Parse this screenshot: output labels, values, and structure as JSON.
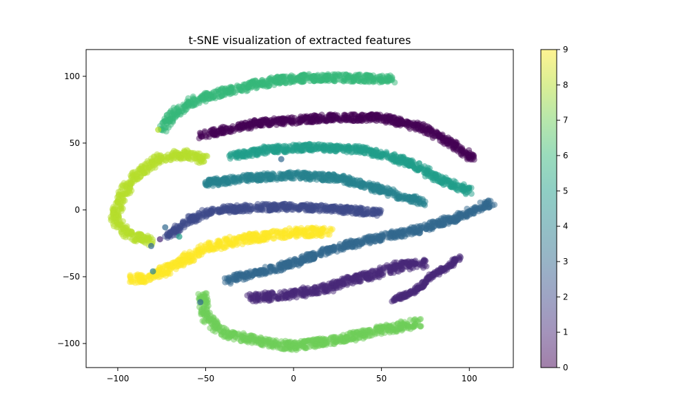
{
  "chart_data": {
    "type": "scatter",
    "title": "t-SNE visualization of extracted features",
    "xlabel": "",
    "ylabel": "",
    "xlim": [
      -118,
      125
    ],
    "ylim": [
      -118,
      120
    ],
    "xticks": [
      -100,
      -50,
      0,
      50,
      100
    ],
    "yticks": [
      -100,
      -50,
      0,
      50,
      100
    ],
    "grid": false,
    "point_alpha": 0.5,
    "colorbar": {
      "label": "",
      "range": [
        0,
        9
      ],
      "ticks": [
        0,
        1,
        2,
        3,
        4,
        5,
        6,
        7,
        8,
        9
      ],
      "colormap": "viridis",
      "alpha": 0.5
    },
    "colors": {
      "0": "#440154",
      "1": "#482878",
      "2": "#3e4989",
      "3": "#31688e",
      "4": "#26828e",
      "5": "#1f9e89",
      "6": "#35b779",
      "7": "#6ece58",
      "8": "#b5de2b",
      "9": "#fde725"
    },
    "series": [
      {
        "label": 0,
        "path": [
          [
            -52,
            56
          ],
          [
            -20,
            65
          ],
          [
            20,
            69
          ],
          [
            50,
            69
          ],
          [
            75,
            61
          ],
          [
            92,
            48
          ],
          [
            102,
            38
          ]
        ],
        "width": 9
      },
      {
        "label": 6,
        "path": [
          [
            -75,
            60
          ],
          [
            -68,
            72
          ],
          [
            -55,
            83
          ],
          [
            -35,
            90
          ],
          [
            -10,
            97
          ],
          [
            10,
            99
          ],
          [
            30,
            99
          ],
          [
            50,
            98
          ],
          [
            56,
            98
          ]
        ],
        "width": 10
      },
      {
        "label": 5,
        "path": [
          [
            -35,
            40
          ],
          [
            -15,
            45
          ],
          [
            10,
            47
          ],
          [
            40,
            45
          ],
          [
            65,
            36
          ],
          [
            85,
            22
          ],
          [
            100,
            14
          ]
        ],
        "width": 9
      },
      {
        "label": 4,
        "path": [
          [
            -50,
            20
          ],
          [
            -25,
            24
          ],
          [
            0,
            26
          ],
          [
            25,
            24
          ],
          [
            45,
            17
          ],
          [
            62,
            10
          ],
          [
            75,
            5
          ]
        ],
        "width": 9
      },
      {
        "label": 2,
        "path": [
          [
            -72,
            -20
          ],
          [
            -60,
            -8
          ],
          [
            -45,
            0
          ],
          [
            -20,
            2
          ],
          [
            10,
            2
          ],
          [
            30,
            0
          ],
          [
            50,
            -2
          ]
        ],
        "width": 9
      },
      {
        "label": 8,
        "path": [
          [
            -50,
            37
          ],
          [
            -62,
            42
          ],
          [
            -78,
            38
          ],
          [
            -90,
            25
          ],
          [
            -98,
            10
          ],
          [
            -102,
            -5
          ],
          [
            -97,
            -15
          ],
          [
            -90,
            -20
          ],
          [
            -80,
            -24
          ]
        ],
        "width": 11
      },
      {
        "label": 9,
        "path": [
          [
            -93,
            -52
          ],
          [
            -80,
            -50
          ],
          [
            -65,
            -40
          ],
          [
            -50,
            -28
          ],
          [
            -30,
            -22
          ],
          [
            0,
            -17
          ],
          [
            20,
            -16
          ]
        ],
        "width": 12
      },
      {
        "label": 3,
        "path": [
          [
            -38,
            -53
          ],
          [
            -20,
            -47
          ],
          [
            0,
            -40
          ],
          [
            20,
            -30
          ],
          [
            45,
            -22
          ],
          [
            70,
            -15
          ],
          [
            95,
            -5
          ],
          [
            113,
            6
          ]
        ],
        "width": 9
      },
      {
        "label": 1,
        "path": [
          [
            -25,
            -66
          ],
          [
            0,
            -63
          ],
          [
            20,
            -58
          ],
          [
            40,
            -50
          ],
          [
            60,
            -42
          ],
          [
            75,
            -40
          ]
        ],
        "width": 11
      },
      {
        "label": 1,
        "path": [
          [
            57,
            -67
          ],
          [
            70,
            -60
          ],
          [
            78,
            -50
          ],
          [
            88,
            -42
          ],
          [
            94,
            -36
          ]
        ],
        "width": 6
      },
      {
        "label": 7,
        "path": [
          [
            -52,
            -62
          ],
          [
            -50,
            -80
          ],
          [
            -40,
            -92
          ],
          [
            -20,
            -98
          ],
          [
            0,
            -102
          ],
          [
            25,
            -97
          ],
          [
            50,
            -90
          ],
          [
            72,
            -84
          ]
        ],
        "width": 11
      }
    ],
    "outliers": [
      {
        "x": -7,
        "y": 38,
        "label": 3
      },
      {
        "x": -53,
        "y": -69,
        "label": 3
      },
      {
        "x": -80,
        "y": -46,
        "label": 4
      },
      {
        "x": -76,
        "y": -22,
        "label": 1
      },
      {
        "x": -73,
        "y": -13,
        "label": 3
      },
      {
        "x": -77,
        "y": 60,
        "label": 8
      },
      {
        "x": -81,
        "y": -27,
        "label": 3
      },
      {
        "x": -65,
        "y": -20,
        "label": 5
      }
    ]
  }
}
